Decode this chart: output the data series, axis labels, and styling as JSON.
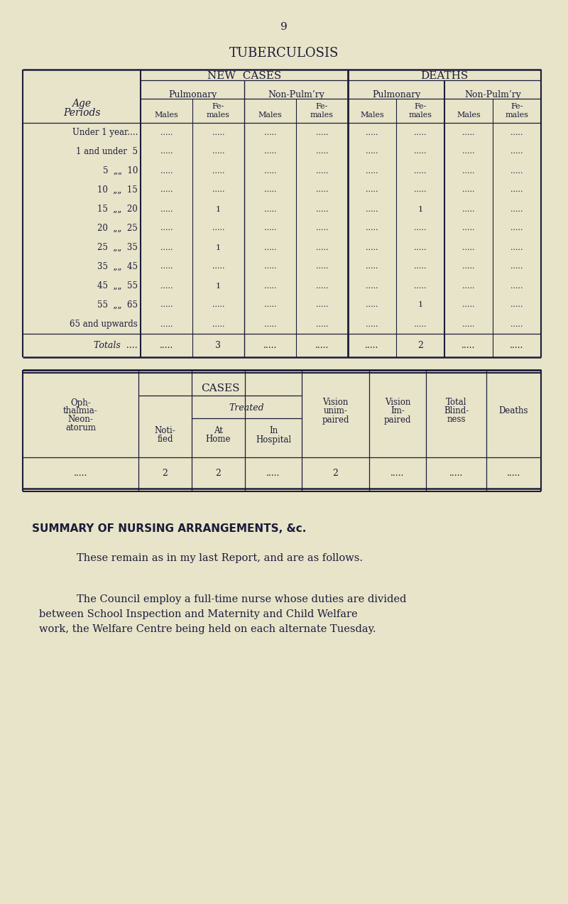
{
  "bg_color": "#e8e4c9",
  "page_number": "9",
  "title": "TUBERCULOSIS",
  "table1_rows": [
    [
      "Under 1 year....",
      "",
      "",
      "",
      "",
      "",
      "",
      "",
      ""
    ],
    [
      "1 and under  5",
      "",
      "",
      "",
      "",
      "",
      "",
      "",
      ""
    ],
    [
      "5  „„  10",
      "",
      "",
      "",
      "",
      "",
      "",
      "",
      ""
    ],
    [
      "10  „„  15",
      "",
      "",
      "",
      "",
      "",
      "",
      "",
      ""
    ],
    [
      "15  „„  20",
      "",
      "1",
      "",
      "",
      "",
      "1",
      "",
      ""
    ],
    [
      "20  „„  25",
      "",
      "",
      "",
      "",
      "",
      "",
      "",
      ""
    ],
    [
      "25  „„  35",
      "",
      "1",
      "",
      "",
      "",
      "",
      "",
      ""
    ],
    [
      "35  „„  45",
      "",
      "",
      "",
      "",
      "",
      "",
      "",
      ""
    ],
    [
      "45  „„  55",
      "",
      "1",
      "",
      "",
      "",
      "",
      "",
      ""
    ],
    [
      "55  „„  65",
      "",
      "",
      "",
      "",
      "",
      "1",
      "",
      ""
    ],
    [
      "65 and upwards",
      "",
      "",
      "",
      "",
      "",
      "",
      "",
      ""
    ]
  ],
  "totals_row": [
    "Totals  ....",
    "",
    "3",
    "",
    "",
    "",
    "2",
    "",
    ""
  ],
  "table2_data": [
    "",
    "2",
    "2",
    "",
    "2",
    "",
    "",
    ""
  ],
  "summary_title": "SUMMARY OF NURSING ARRANGEMENTS, &c.",
  "summary_para1": "These remain as in my last Report, and are as follows.",
  "summary_line1": "The Council employ a full-time nurse whose duties are divided",
  "summary_line2": "between School Inspection and Maternity and Child Welfare",
  "summary_line3": "work, the Welfare Centre being held on each alternate Tuesday.",
  "dot_str": ".....",
  "text_color": "#1c1c3a",
  "line_color": "#1c1c3a"
}
